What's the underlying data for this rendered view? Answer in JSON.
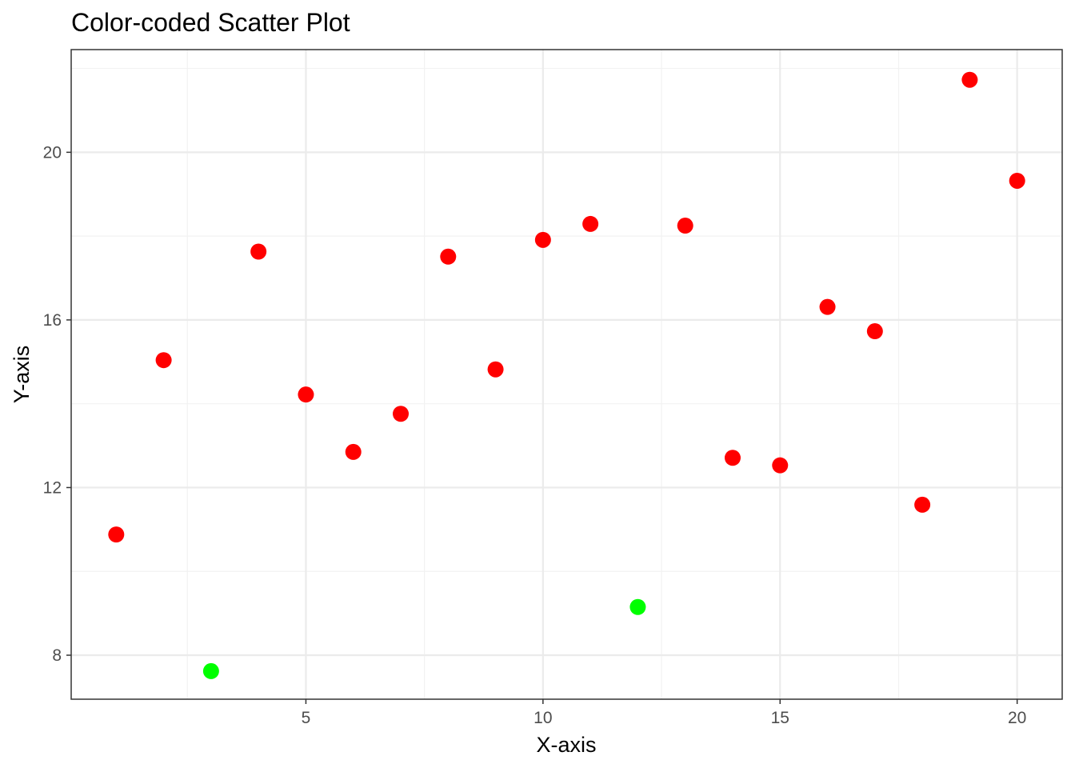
{
  "chart_data": {
    "type": "scatter",
    "title": "Color-coded Scatter Plot",
    "xlabel": "X-axis",
    "ylabel": "Y-axis",
    "xlim": [
      0.05,
      20.95
    ],
    "ylim": [
      6.95,
      22.45
    ],
    "x_ticks": [
      5,
      10,
      15,
      20
    ],
    "x_minor_ticks": [
      2.5,
      7.5,
      12.5,
      17.5
    ],
    "y_ticks": [
      8,
      12,
      16,
      20
    ],
    "y_minor_ticks": [
      10,
      14,
      18,
      22
    ],
    "grid": true,
    "legend": "none",
    "colors": {
      "red": "#ff0000",
      "green": "#00ff00",
      "grid_major": "#ebebeb",
      "grid_minor": "#f2f2f2",
      "panel_border": "#333333",
      "tick_text": "#4d4d4d"
    },
    "points": [
      {
        "x": 1,
        "y": 10.88,
        "color": "red"
      },
      {
        "x": 2,
        "y": 15.04,
        "color": "red"
      },
      {
        "x": 3,
        "y": 7.62,
        "color": "green"
      },
      {
        "x": 4,
        "y": 17.63,
        "color": "red"
      },
      {
        "x": 5,
        "y": 14.22,
        "color": "red"
      },
      {
        "x": 6,
        "y": 12.85,
        "color": "red"
      },
      {
        "x": 7,
        "y": 13.76,
        "color": "red"
      },
      {
        "x": 8,
        "y": 17.51,
        "color": "red"
      },
      {
        "x": 9,
        "y": 14.82,
        "color": "red"
      },
      {
        "x": 10,
        "y": 17.91,
        "color": "red"
      },
      {
        "x": 11,
        "y": 18.29,
        "color": "red"
      },
      {
        "x": 12,
        "y": 9.15,
        "color": "green"
      },
      {
        "x": 13,
        "y": 18.25,
        "color": "red"
      },
      {
        "x": 14,
        "y": 12.71,
        "color": "red"
      },
      {
        "x": 15,
        "y": 12.53,
        "color": "red"
      },
      {
        "x": 16,
        "y": 16.31,
        "color": "red"
      },
      {
        "x": 17,
        "y": 15.73,
        "color": "red"
      },
      {
        "x": 18,
        "y": 11.59,
        "color": "red"
      },
      {
        "x": 19,
        "y": 21.73,
        "color": "red"
      },
      {
        "x": 20,
        "y": 19.32,
        "color": "red"
      }
    ]
  }
}
